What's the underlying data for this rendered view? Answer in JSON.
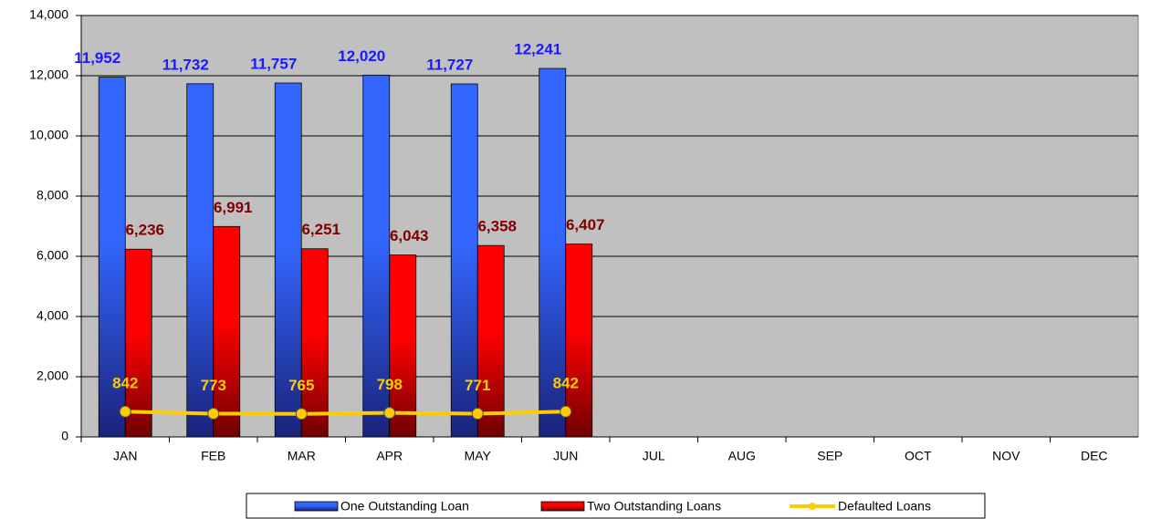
{
  "chart_data": {
    "type": "bar",
    "categories": [
      "JAN",
      "FEB",
      "MAR",
      "APR",
      "MAY",
      "JUN",
      "JUL",
      "AUG",
      "SEP",
      "OCT",
      "NOV",
      "DEC"
    ],
    "series": [
      {
        "name": "One Outstanding Loan",
        "type": "bar",
        "color": "#3366ff",
        "label_color": "#1a1aff",
        "values": [
          11952,
          11732,
          11757,
          12020,
          11727,
          12241,
          null,
          null,
          null,
          null,
          null,
          null
        ],
        "value_labels": [
          "11,952",
          "11,732",
          "11,757",
          "12,020",
          "11,727",
          "12,241",
          null,
          null,
          null,
          null,
          null,
          null
        ]
      },
      {
        "name": "Two Outstanding Loans",
        "type": "bar",
        "color": "#ff0000",
        "label_color": "#800000",
        "values": [
          6236,
          6991,
          6251,
          6043,
          6358,
          6407,
          null,
          null,
          null,
          null,
          null,
          null
        ],
        "value_labels": [
          "6,236",
          "6,991",
          "6,251",
          "6,043",
          "6,358",
          "6,407",
          null,
          null,
          null,
          null,
          null,
          null
        ]
      },
      {
        "name": "Defaulted Loans",
        "type": "line",
        "color": "#ffcc00",
        "label_color": "#ffcc00",
        "values": [
          842,
          773,
          765,
          798,
          771,
          842,
          null,
          null,
          null,
          null,
          null,
          null
        ]
      }
    ],
    "ylim": [
      0,
      14000
    ],
    "yticks": [
      0,
      {
        "value": 2000,
        "label": "2,000"
      },
      {
        "value": 4000,
        "label": "4,000"
      },
      {
        "value": 6000,
        "label": "6,000"
      },
      {
        "value": 8000,
        "label": "8,000"
      },
      {
        "value": 10000,
        "label": "10,000"
      },
      {
        "value": 12000,
        "label": "12,000"
      },
      {
        "value": 14000,
        "label": "14,000"
      }
    ],
    "grid": true,
    "legend": "bottom",
    "plot_background": "#c0c0c0"
  }
}
